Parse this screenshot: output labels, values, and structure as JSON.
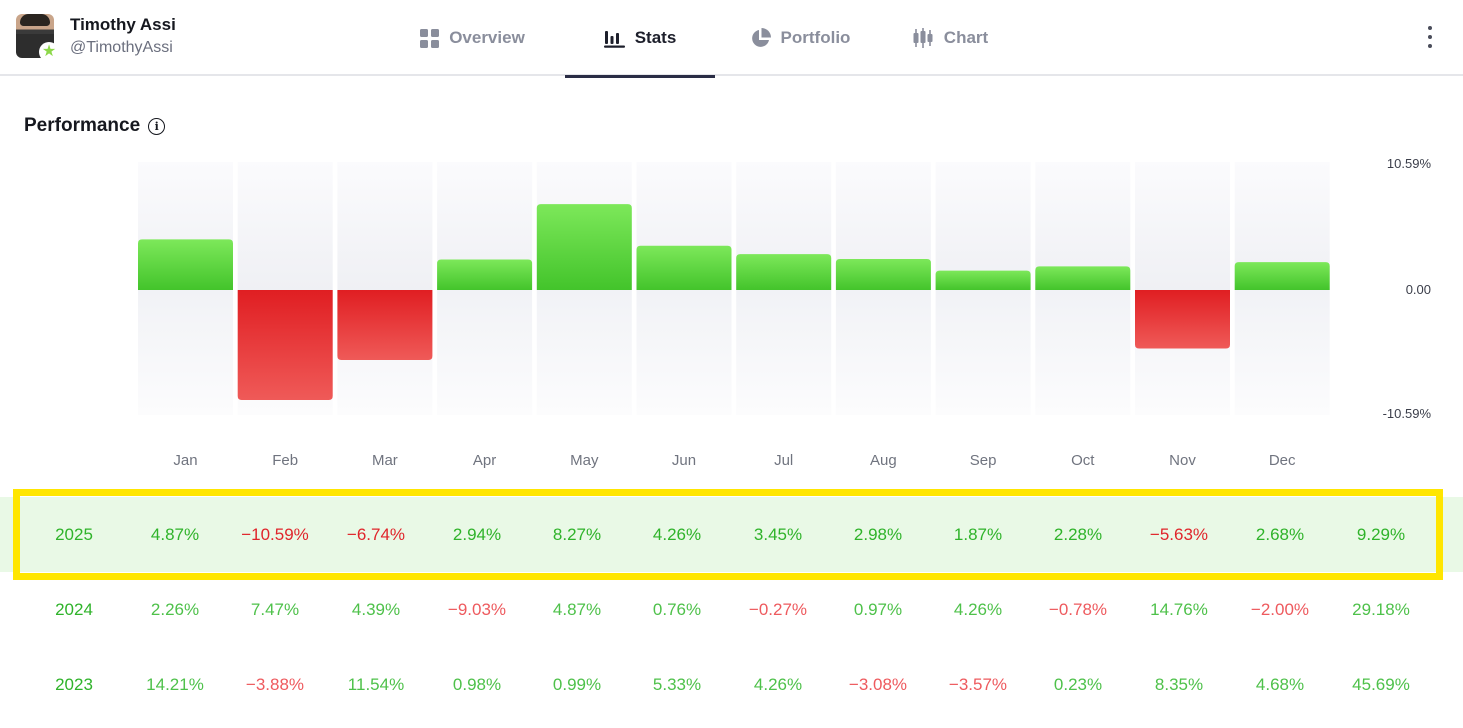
{
  "user": {
    "name": "Timothy Assi",
    "handle": "@TimothyAssi"
  },
  "tabs": [
    {
      "label": "Overview",
      "icon": "grid-icon"
    },
    {
      "label": "Stats",
      "icon": "bar-chart-icon",
      "active": true
    },
    {
      "label": "Portfolio",
      "icon": "pie-chart-icon"
    },
    {
      "label": "Chart",
      "icon": "candlestick-icon"
    }
  ],
  "performance": {
    "title": "Performance"
  },
  "colors": {
    "positive": "#4cce2e",
    "negative": "#e3272c",
    "highlight": "#ffe600"
  },
  "chart_data": {
    "type": "bar",
    "categories": [
      "Jan",
      "Feb",
      "Mar",
      "Apr",
      "May",
      "Jun",
      "Jul",
      "Aug",
      "Sep",
      "Oct",
      "Nov",
      "Dec"
    ],
    "values": [
      4.87,
      -10.59,
      -6.74,
      2.94,
      8.27,
      4.26,
      3.45,
      2.98,
      1.87,
      2.28,
      -5.63,
      2.68
    ],
    "ylim": [
      -10.59,
      10.59
    ],
    "yticks": [
      "10.59%",
      "0.00",
      "-10.59%"
    ],
    "grid": false
  },
  "table": {
    "rows": [
      {
        "year": "2025",
        "values": [
          "4.87%",
          "-10.59%",
          "-6.74%",
          "2.94%",
          "8.27%",
          "4.26%",
          "3.45%",
          "2.98%",
          "1.87%",
          "2.28%",
          "-5.63%",
          "2.68%",
          "9.29%"
        ]
      },
      {
        "year": "2024",
        "values": [
          "2.26%",
          "7.47%",
          "4.39%",
          "-9.03%",
          "4.87%",
          "0.76%",
          "-0.27%",
          "0.97%",
          "4.26%",
          "-0.78%",
          "14.76%",
          "-2.00%",
          "29.18%"
        ]
      },
      {
        "year": "2023",
        "values": [
          "14.21%",
          "-3.88%",
          "11.54%",
          "0.98%",
          "0.99%",
          "5.33%",
          "4.26%",
          "-3.08%",
          "-3.57%",
          "0.23%",
          "8.35%",
          "4.68%",
          "45.69%"
        ]
      }
    ]
  }
}
